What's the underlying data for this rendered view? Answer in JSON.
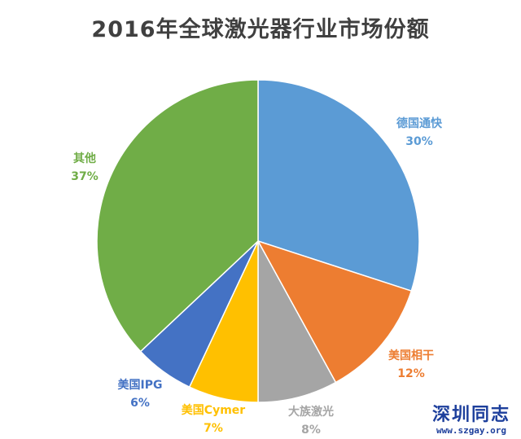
{
  "chart_data": {
    "type": "pie",
    "title": "2016年全球激光器行业市场份额",
    "slices": [
      {
        "label": "德国通快",
        "value": 30,
        "value_label": "30%",
        "color": "#5b9bd5"
      },
      {
        "label": "美国相干",
        "value": 12,
        "value_label": "12%",
        "color": "#ed7d31"
      },
      {
        "label": "大族激光",
        "value": 8,
        "value_label": "8%",
        "color": "#a5a5a5"
      },
      {
        "label": "美国Cymer",
        "value": 7,
        "value_label": "7%",
        "color": "#ffc000"
      },
      {
        "label": "美国IPG",
        "value": 6,
        "value_label": "6%",
        "color": "#4472c4"
      },
      {
        "label": "其他",
        "value": 37,
        "value_label": "37%",
        "color": "#70ad47"
      }
    ],
    "start_angle_deg": 0,
    "direction": "clockwise",
    "legend": "none",
    "label_text_color": "slice"
  },
  "watermark": {
    "title": "深圳同志",
    "url": "www.szgay.org"
  }
}
